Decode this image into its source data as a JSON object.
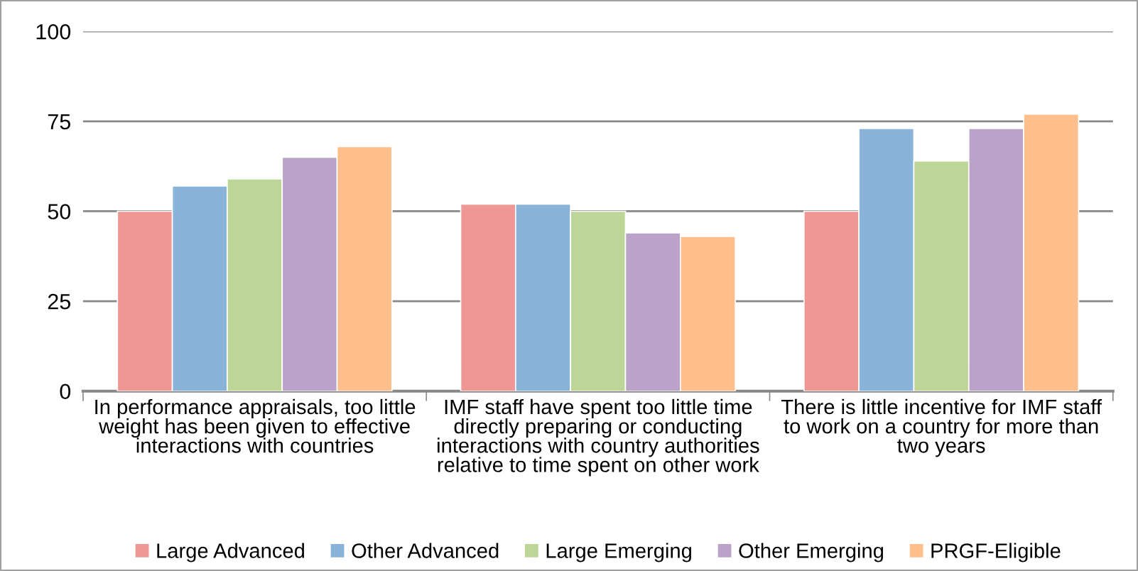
{
  "chart_data": {
    "type": "bar",
    "categories": [
      "In performance appraisals, too little\nweight has been given to effective\ninteractions with countries",
      "IMF staff have spent too little time\ndirectly preparing or conducting\ninteractions with country authorities\nrelative to time spent on other work",
      "There is little incentive for IMF staff\nto work on a country for more than\ntwo years"
    ],
    "series": [
      {
        "name": "Large Advanced",
        "color": "#ee9794",
        "values": [
          50,
          52,
          50
        ]
      },
      {
        "name": "Other Advanced",
        "color": "#89b3d9",
        "values": [
          57,
          52,
          73
        ]
      },
      {
        "name": "Large Emerging",
        "color": "#bdd697",
        "values": [
          59,
          50,
          64
        ]
      },
      {
        "name": "Other Emerging",
        "color": "#bba2c8",
        "values": [
          65,
          44,
          73
        ]
      },
      {
        "name": "PRGF-Eligible",
        "color": "#ffbf8d",
        "values": [
          68,
          43,
          77
        ]
      }
    ],
    "ylim": [
      0,
      100
    ],
    "yticks": [
      0,
      25,
      50,
      75,
      100
    ],
    "grid": "y",
    "legend": "bottom"
  }
}
